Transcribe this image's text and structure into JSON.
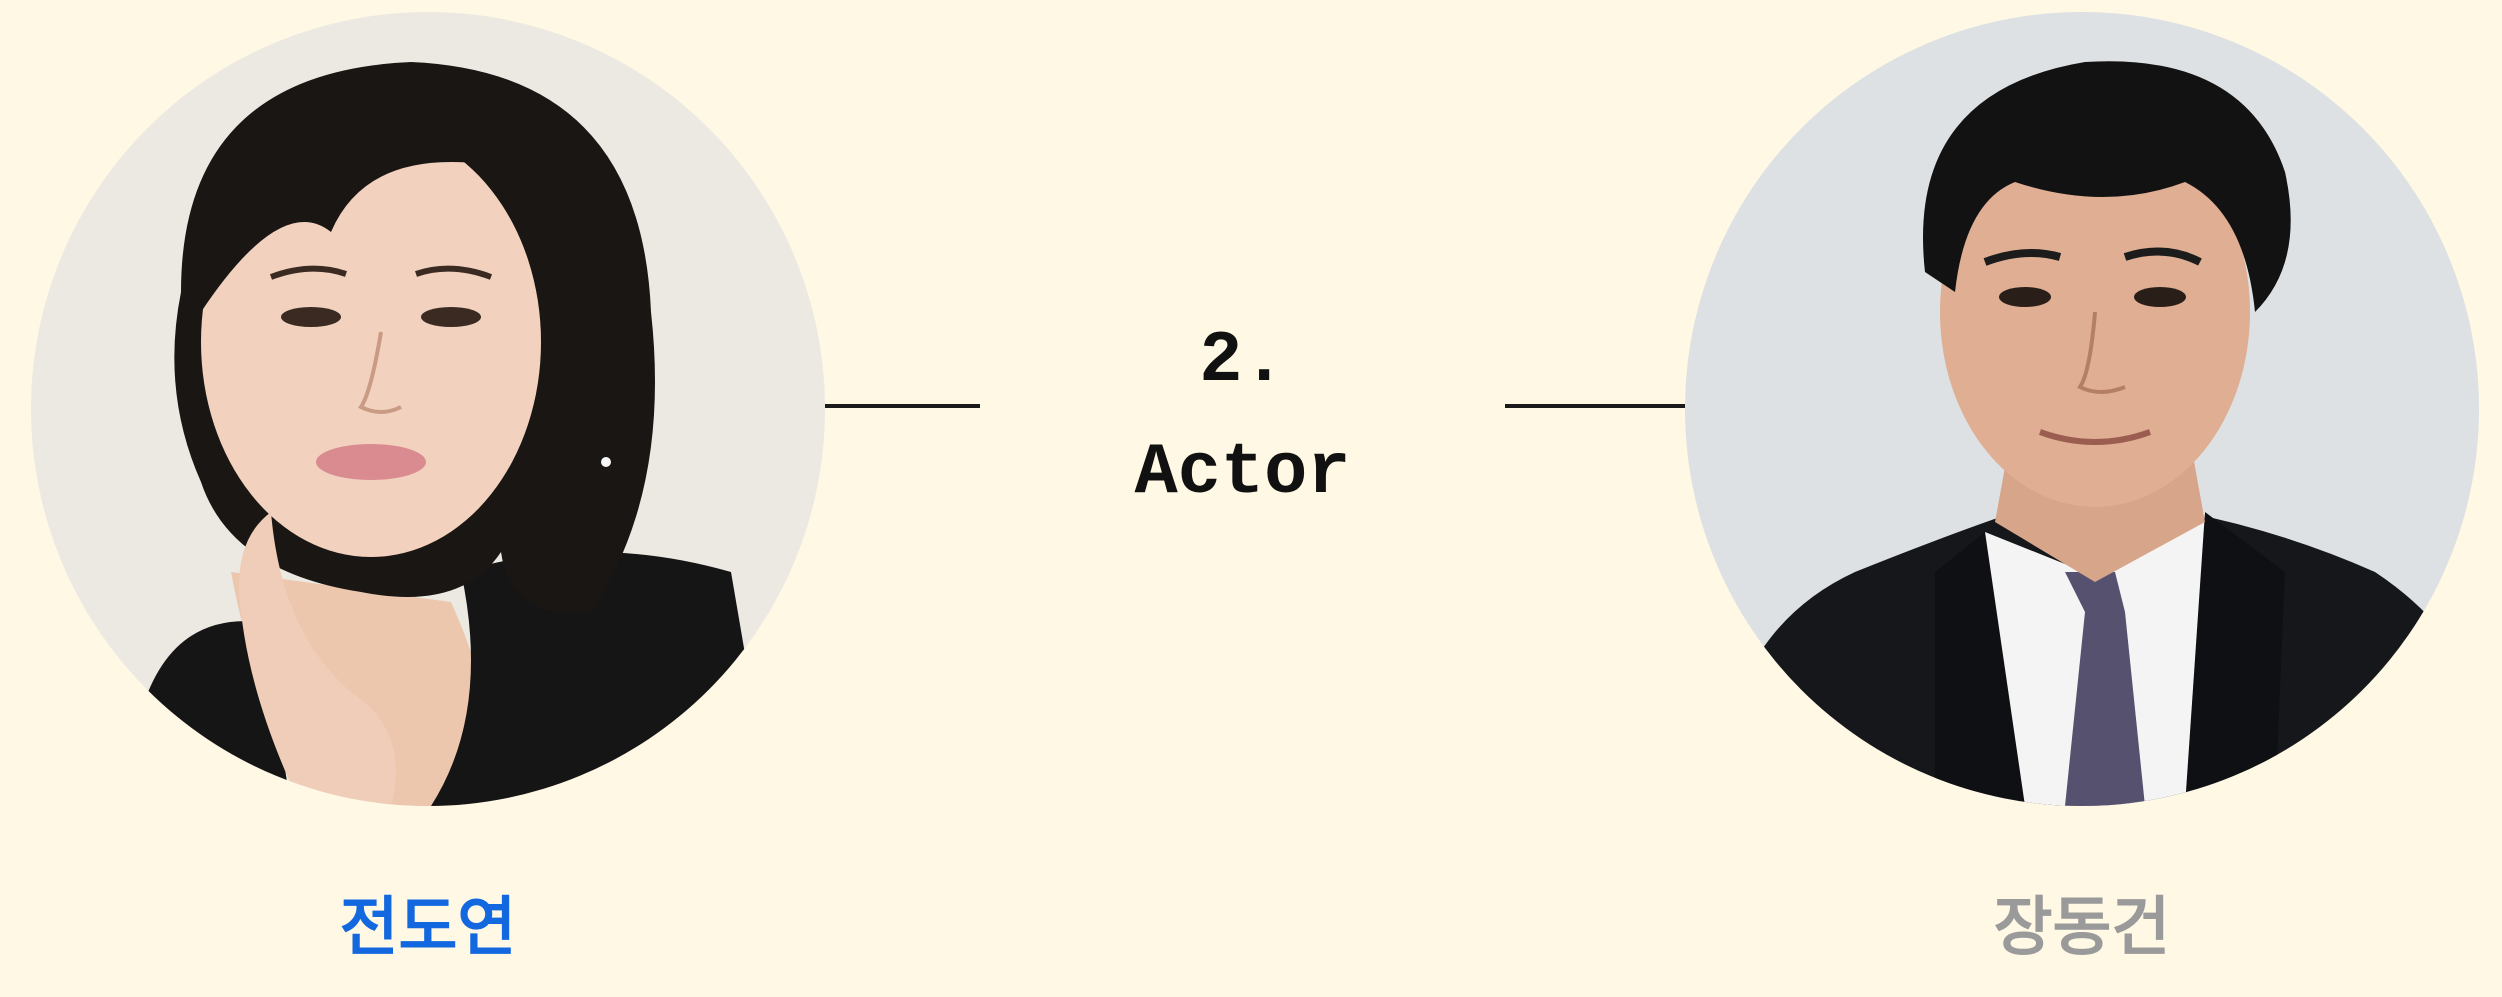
{
  "question": {
    "number": "2.",
    "category": "Actor"
  },
  "choices": [
    {
      "name": "전도연",
      "state": "selected",
      "color": "#1368e0",
      "portrait_icon": "woman-portrait"
    },
    {
      "name": "장동건",
      "state": "unselected",
      "color": "#9a9a9a",
      "portrait_icon": "man-portrait"
    }
  ],
  "theme": {
    "background": "#fef8e4",
    "line_color": "#1a1a1a"
  }
}
